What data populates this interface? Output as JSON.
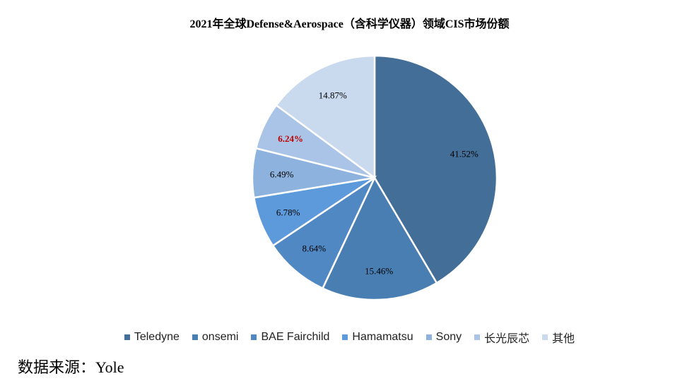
{
  "chart_data": {
    "type": "pie",
    "title": "2021年全球Defense&Aerospace（含科学仪器）领域CIS市场份额",
    "slices": [
      {
        "name": "Teledyne",
        "value": 41.52,
        "label": "41.52%",
        "color": "#426E98",
        "label_color": "#000000"
      },
      {
        "name": "onsemi",
        "value": 15.46,
        "label": "15.46%",
        "color": "#497EB2",
        "label_color": "#000000"
      },
      {
        "name": "BAE Fairchild",
        "value": 8.64,
        "label": "8.64%",
        "color": "#5088C4",
        "label_color": "#000000"
      },
      {
        "name": "Hamamatsu",
        "value": 6.78,
        "label": "6.78%",
        "color": "#5C9ADB",
        "label_color": "#000000"
      },
      {
        "name": "Sony",
        "value": 6.49,
        "label": "6.49%",
        "color": "#8DB2DE",
        "label_color": "#000000"
      },
      {
        "name": "长光辰芯",
        "value": 6.24,
        "label": "6.24%",
        "color": "#A9C4E6",
        "label_color": "#C00000"
      },
      {
        "name": "其他",
        "value": 14.87,
        "label": "14.87%",
        "color": "#C9D9EE",
        "label_color": "#000000"
      }
    ],
    "legend_position": "bottom"
  },
  "source_text": "数据来源：Yole"
}
